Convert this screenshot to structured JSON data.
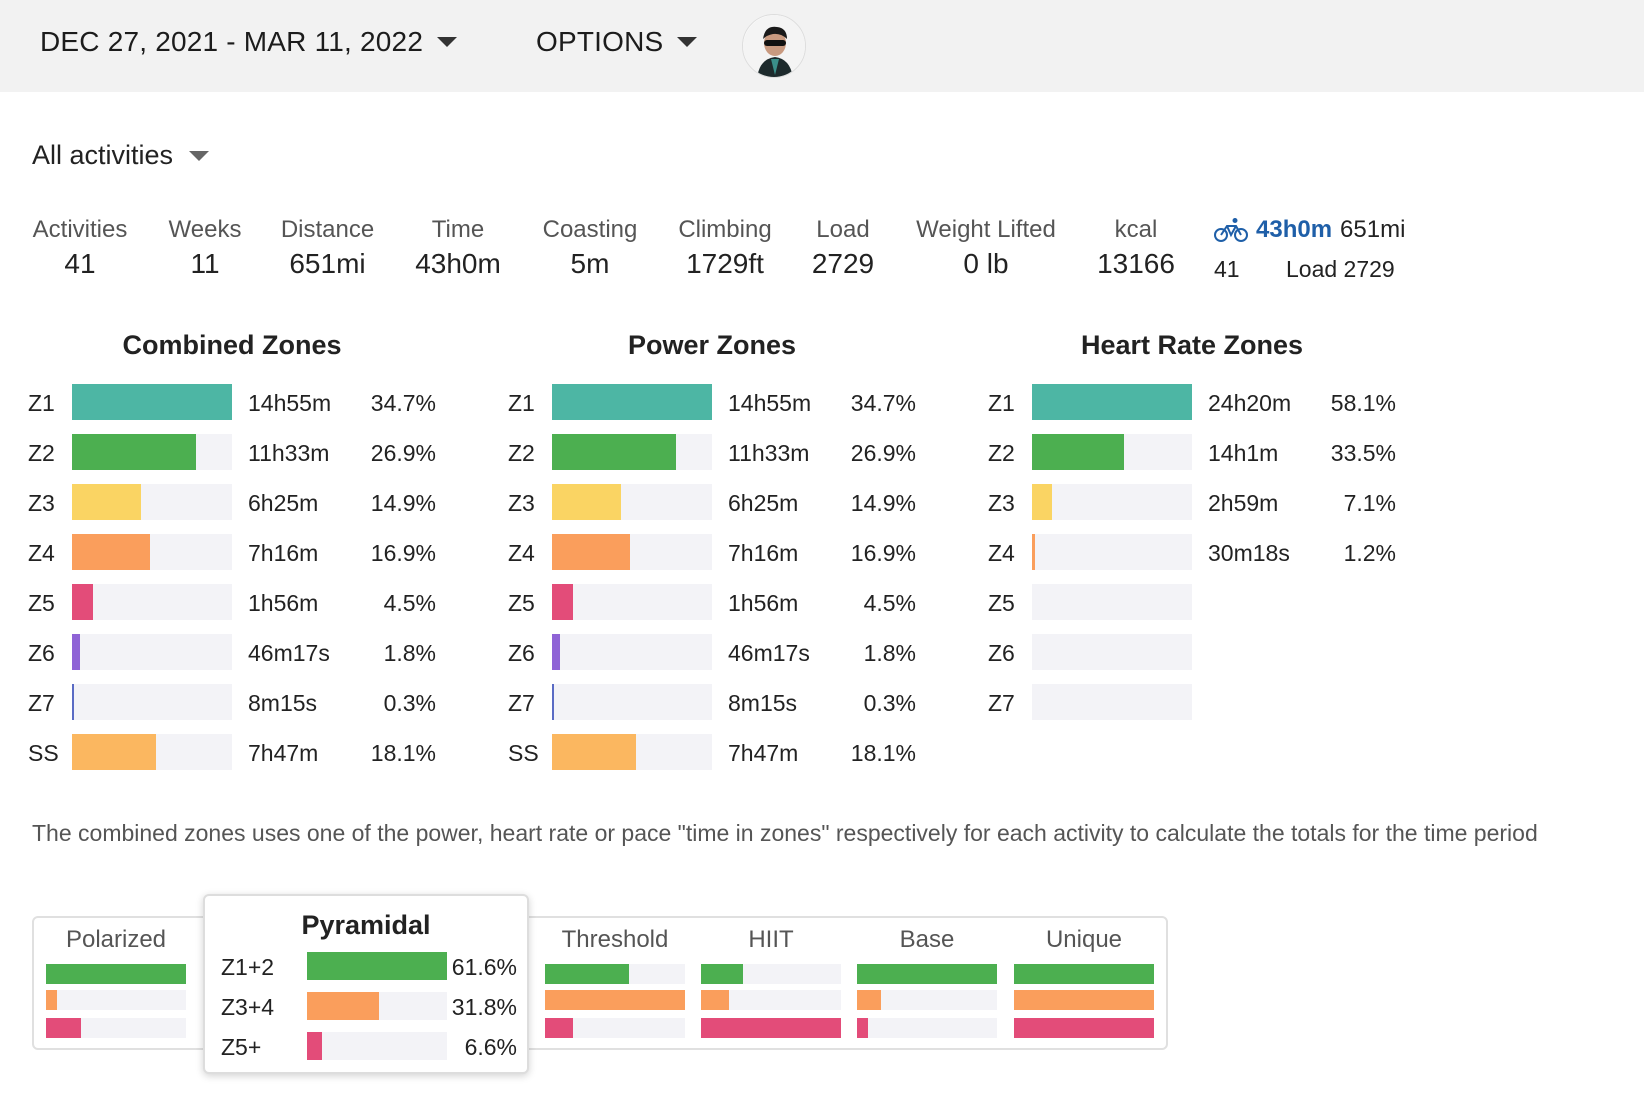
{
  "header": {
    "date_range": "DEC 27, 2021 - MAR 11, 2022",
    "options_label": "OPTIONS"
  },
  "filter": {
    "label": "All activities"
  },
  "summary": [
    {
      "label": "Activities",
      "value": "41"
    },
    {
      "label": "Weeks",
      "value": "11"
    },
    {
      "label": "Distance",
      "value": "651mi"
    },
    {
      "label": "Time",
      "value": "43h0m"
    },
    {
      "label": "Coasting",
      "value": "5m"
    },
    {
      "label": "Climbing",
      "value": "1729ft"
    },
    {
      "label": "Load",
      "value": "2729"
    },
    {
      "label": "Weight Lifted",
      "value": "0 lb"
    },
    {
      "label": "kcal",
      "value": "13166"
    }
  ],
  "sport": {
    "icon": "bicycle-icon",
    "time": "43h0m",
    "distance": "651mi",
    "count": "41",
    "load": "Load 2729"
  },
  "zones": [
    {
      "title": "Combined Zones",
      "rows": [
        {
          "zone": "Z1",
          "time": "14h55m",
          "pct": "34.7%",
          "fraction": 1.0,
          "color": "#4db6a4"
        },
        {
          "zone": "Z2",
          "time": "11h33m",
          "pct": "26.9%",
          "fraction": 0.775,
          "color": "#4caf50"
        },
        {
          "zone": "Z3",
          "time": "6h25m",
          "pct": "14.9%",
          "fraction": 0.43,
          "color": "#fad463"
        },
        {
          "zone": "Z4",
          "time": "7h16m",
          "pct": "16.9%",
          "fraction": 0.487,
          "color": "#fa9e5c"
        },
        {
          "zone": "Z5",
          "time": "1h56m",
          "pct": "4.5%",
          "fraction": 0.13,
          "color": "#e34c79"
        },
        {
          "zone": "Z6",
          "time": "46m17s",
          "pct": "1.8%",
          "fraction": 0.052,
          "color": "#8f63d6"
        },
        {
          "zone": "Z7",
          "time": "8m15s",
          "pct": "0.3%",
          "fraction": 0.009,
          "color": "#5a6bc4"
        },
        {
          "zone": "SS",
          "time": "7h47m",
          "pct": "18.1%",
          "fraction": 0.522,
          "color": "#fbb760"
        }
      ]
    },
    {
      "title": "Power Zones",
      "rows": [
        {
          "zone": "Z1",
          "time": "14h55m",
          "pct": "34.7%",
          "fraction": 1.0,
          "color": "#4db6a4"
        },
        {
          "zone": "Z2",
          "time": "11h33m",
          "pct": "26.9%",
          "fraction": 0.775,
          "color": "#4caf50"
        },
        {
          "zone": "Z3",
          "time": "6h25m",
          "pct": "14.9%",
          "fraction": 0.43,
          "color": "#fad463"
        },
        {
          "zone": "Z4",
          "time": "7h16m",
          "pct": "16.9%",
          "fraction": 0.487,
          "color": "#fa9e5c"
        },
        {
          "zone": "Z5",
          "time": "1h56m",
          "pct": "4.5%",
          "fraction": 0.13,
          "color": "#e34c79"
        },
        {
          "zone": "Z6",
          "time": "46m17s",
          "pct": "1.8%",
          "fraction": 0.052,
          "color": "#8f63d6"
        },
        {
          "zone": "Z7",
          "time": "8m15s",
          "pct": "0.3%",
          "fraction": 0.009,
          "color": "#5a6bc4"
        },
        {
          "zone": "SS",
          "time": "7h47m",
          "pct": "18.1%",
          "fraction": 0.522,
          "color": "#fbb760"
        }
      ]
    },
    {
      "title": "Heart Rate Zones",
      "rows": [
        {
          "zone": "Z1",
          "time": "24h20m",
          "pct": "58.1%",
          "fraction": 1.0,
          "color": "#4db6a4"
        },
        {
          "zone": "Z2",
          "time": "14h1m",
          "pct": "33.5%",
          "fraction": 0.577,
          "color": "#4caf50"
        },
        {
          "zone": "Z3",
          "time": "2h59m",
          "pct": "7.1%",
          "fraction": 0.122,
          "color": "#fad463"
        },
        {
          "zone": "Z4",
          "time": "30m18s",
          "pct": "1.2%",
          "fraction": 0.021,
          "color": "#fa9e5c"
        },
        {
          "zone": "Z5",
          "time": "",
          "pct": "",
          "fraction": 0,
          "color": "#e34c79"
        },
        {
          "zone": "Z6",
          "time": "",
          "pct": "",
          "fraction": 0,
          "color": "#8f63d6"
        },
        {
          "zone": "Z7",
          "time": "",
          "pct": "",
          "fraction": 0,
          "color": "#5a6bc4"
        }
      ]
    }
  ],
  "note": "The combined zones uses one of the power, heart rate or pace \"time in zones\" respectively for each activity to calculate the totals for the time period",
  "distribution": {
    "colors": [
      "#4caf50",
      "#fa9e5c",
      "#e34c79"
    ],
    "models": [
      {
        "name": "Polarized",
        "fractions": [
          1.0,
          0.08,
          0.25
        ]
      },
      {
        "name": "Pyramidal",
        "fractions": [
          1.0,
          0.5,
          0.1
        ]
      },
      {
        "name": "Threshold",
        "fractions": [
          0.6,
          1.0,
          0.2
        ]
      },
      {
        "name": "HIIT",
        "fractions": [
          0.3,
          0.2,
          1.0
        ]
      },
      {
        "name": "Base",
        "fractions": [
          1.0,
          0.17,
          0.08
        ]
      },
      {
        "name": "Unique",
        "fractions": [
          1.0,
          1.0,
          1.0
        ]
      }
    ],
    "selected": {
      "name": "Pyramidal",
      "rows": [
        {
          "label": "Z1+2",
          "pct": "61.6%",
          "fraction": 1.0
        },
        {
          "label": "Z3+4",
          "pct": "31.8%",
          "fraction": 0.516
        },
        {
          "label": "Z5+",
          "pct": "6.6%",
          "fraction": 0.107
        }
      ]
    }
  }
}
